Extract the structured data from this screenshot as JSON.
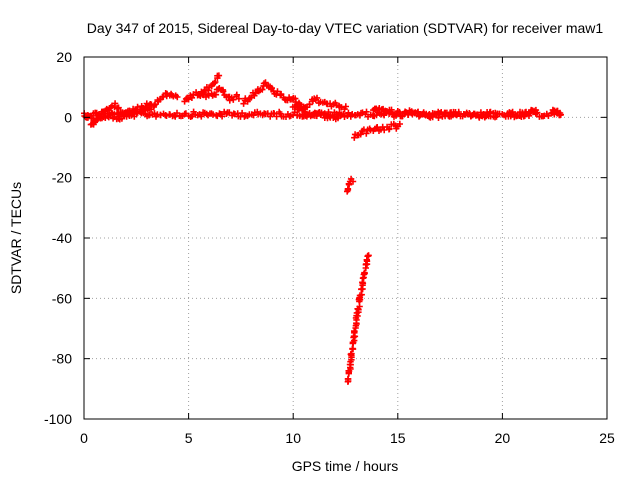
{
  "chart_data": {
    "type": "scatter",
    "title": "Day 347 of 2015, Sidereal Day-to-day VTEC variation (SDTVAR) for receiver maw1",
    "xlabel": "GPS time / hours",
    "ylabel": "SDTVAR / TECUs",
    "xlim": [
      0,
      25
    ],
    "ylim": [
      -100,
      20
    ],
    "x_ticks": [
      0,
      5,
      10,
      15,
      20,
      25
    ],
    "x_tick_labels": [
      "0",
      "5",
      "10",
      "15",
      "20",
      "25"
    ],
    "y_ticks": [
      -100,
      -80,
      -60,
      -40,
      -20,
      0,
      20
    ],
    "y_tick_labels": [
      "-100",
      "-80",
      "-60",
      "-40",
      "-20",
      "0",
      "20"
    ],
    "grid": true,
    "marker": "plus",
    "color": "#ff0000",
    "series": [
      {
        "segments": [
          {
            "x": [
              0.0,
              22.9
            ],
            "y": [
              1,
              1
            ]
          },
          {
            "x": [
              0.0,
              0.5,
              1.0,
              1.5,
              2.0,
              2.5,
              3.0,
              3.5,
              4.0,
              4.5
            ],
            "y": [
              1,
              -1,
              2,
              4,
              1,
              3,
              4,
              5,
              8,
              6
            ]
          },
          {
            "x": [
              0.3,
              1.0,
              1.8,
              2.6,
              3.4
            ],
            "y": [
              -2,
              0,
              0,
              2,
              3
            ]
          },
          {
            "x": [
              4.8,
              5.5,
              6.0,
              6.5,
              7.0,
              7.5
            ],
            "y": [
              6,
              8,
              7,
              9,
              6,
              7
            ]
          },
          {
            "x": [
              5.5,
              6.0,
              6.3,
              6.5
            ],
            "y": [
              7,
              10,
              12,
              14
            ]
          },
          {
            "x": [
              7.6,
              8.2,
              8.7,
              9.0,
              9.5,
              10.0
            ],
            "y": [
              5,
              8,
              11,
              9,
              7,
              5
            ]
          },
          {
            "x": [
              10.0,
              10.5,
              11.0,
              11.5,
              12.0,
              12.6
            ],
            "y": [
              6,
              3,
              6,
              5,
              4,
              3
            ]
          },
          {
            "x": [
              10.0,
              10.6,
              11.2,
              11.8,
              12.4
            ],
            "y": [
              4,
              1,
              1,
              0,
              0
            ]
          },
          {
            "x": [
              12.6,
              12.7,
              12.9
            ],
            "y": [
              -24,
              -22,
              -20
            ]
          },
          {
            "x": [
              12.6,
              12.8,
              13.0,
              13.2,
              13.4,
              13.6
            ],
            "y": [
              -88,
              -78,
              -68,
              -60,
              -52,
              -45
            ]
          },
          {
            "x": [
              12.9,
              13.3,
              13.8,
              14.3,
              14.8,
              15.2
            ],
            "y": [
              -6,
              -5,
              -4,
              -4,
              -3,
              -3
            ]
          },
          {
            "x": [
              13.8,
              14.5,
              15.2,
              15.8,
              16.5,
              17.2,
              18.0
            ],
            "y": [
              3,
              2,
              1,
              2,
              0,
              1,
              1
            ]
          },
          {
            "x": [
              18.3,
              18.8,
              19.3,
              19.8
            ],
            "y": [
              1,
              0,
              1,
              0
            ]
          },
          {
            "x": [
              20.3,
              20.8,
              21.3,
              21.7
            ],
            "y": [
              1,
              0,
              2,
              2
            ]
          },
          {
            "x": [
              22.4,
              22.7,
              22.8
            ],
            "y": [
              3,
              1,
              0
            ]
          }
        ]
      }
    ]
  }
}
